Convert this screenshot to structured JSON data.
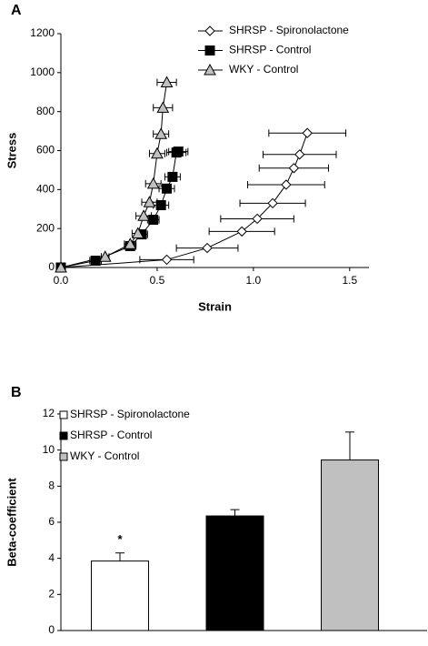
{
  "chart_data": [
    {
      "type": "line",
      "panel_label": "A",
      "xlabel": "Strain",
      "ylabel": "Stress",
      "xlim": [
        0,
        1.6
      ],
      "ylim": [
        0,
        1200
      ],
      "xticks": [
        {
          "value": 0,
          "label": "0.0"
        },
        {
          "value": 0.5,
          "label": "0.5"
        },
        {
          "value": 1,
          "label": "1.0"
        },
        {
          "value": 1.5,
          "label": "1.5"
        }
      ],
      "yticks": [
        0,
        200,
        400,
        600,
        800,
        1000,
        1200
      ],
      "series": [
        {
          "name": "SHRSP - Spironolactone",
          "color": "#ffffff",
          "marker": "diamond",
          "x": [
            0,
            0.55,
            0.76,
            0.94,
            1.02,
            1.1,
            1.17,
            1.21,
            1.24,
            1.28
          ],
          "values": [
            0,
            40,
            100,
            185,
            250,
            330,
            425,
            510,
            580,
            690
          ],
          "xerr": [
            0,
            0.14,
            0.16,
            0.17,
            0.19,
            0.17,
            0.2,
            0.18,
            0.19,
            0.2
          ]
        },
        {
          "name": "SHRSP - Control",
          "color": "#000000",
          "marker": "square",
          "x": [
            0,
            0.18,
            0.36,
            0.42,
            0.48,
            0.52,
            0.55,
            0.58,
            0.6,
            0.61
          ],
          "values": [
            0,
            35,
            110,
            170,
            245,
            320,
            405,
            465,
            590,
            595
          ],
          "xerr": [
            0,
            0.03,
            0.03,
            0.03,
            0.03,
            0.04,
            0.04,
            0.04,
            0.05,
            0.05
          ]
        },
        {
          "name": "WKY - Control",
          "color": "#c0c0c0",
          "marker": "triangle",
          "x": [
            0,
            0.23,
            0.36,
            0.4,
            0.43,
            0.46,
            0.48,
            0.5,
            0.52,
            0.53,
            0.55
          ],
          "values": [
            0,
            55,
            120,
            175,
            265,
            335,
            430,
            585,
            685,
            820,
            950
          ],
          "xerr": [
            0,
            0.02,
            0.03,
            0.03,
            0.04,
            0.04,
            0.04,
            0.04,
            0.04,
            0.05,
            0.05
          ]
        }
      ]
    },
    {
      "type": "bar",
      "panel_label": "B",
      "ylabel": "Beta-coefficient",
      "ylim": [
        0,
        12
      ],
      "yticks": [
        0,
        2,
        4,
        6,
        8,
        10,
        12
      ],
      "series": [
        {
          "name": "SHRSP - Spironolactone",
          "color": "#ffffff",
          "values": [
            3.85
          ],
          "errors": [
            0.45
          ]
        },
        {
          "name": "SHRSP - Control",
          "color": "#000000",
          "values": [
            6.35
          ],
          "errors": [
            0.35
          ]
        },
        {
          "name": "WKY - Control",
          "color": "#c0c0c0",
          "values": [
            9.45
          ],
          "errors": [
            1.55
          ]
        }
      ],
      "annotations": [
        {
          "text": "*",
          "series": 0
        }
      ]
    }
  ]
}
